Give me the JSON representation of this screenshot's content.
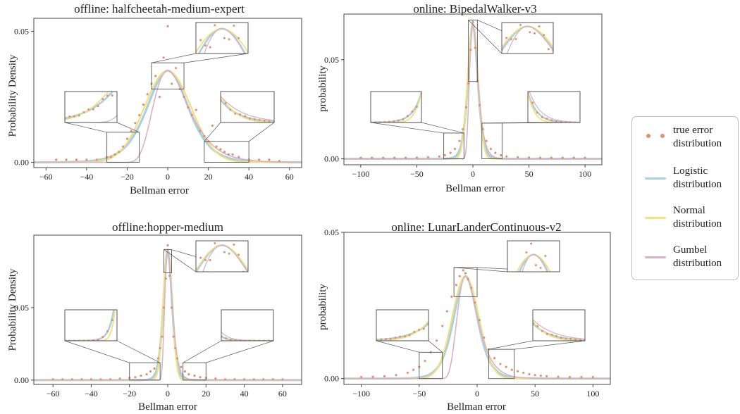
{
  "colors": {
    "true_error": "#e0926c",
    "logistic": "#aacfe2",
    "normal": "#f2df7d",
    "gumbel": "#d5b3c8",
    "frame": "#444444",
    "inset_frame": "#555555"
  },
  "legend": {
    "placement": "right",
    "items": [
      {
        "label": "true error\ndistribution",
        "color": "#e0926c",
        "marker": "dots"
      },
      {
        "label": "Logistic\ndistribution",
        "color": "#aacfe2",
        "marker": "line"
      },
      {
        "label": "Normal\ndistribution",
        "color": "#f2df7d",
        "marker": "line"
      },
      {
        "label": "Gumbel\ndistribution",
        "color": "#d5b3c8",
        "marker": "line"
      }
    ]
  },
  "chart_data": [
    {
      "type": "scatter",
      "title": "offline: halfcheetah-medium-expert",
      "xlabel": "Bellman error",
      "ylabel": "Probability Density",
      "xlim": [
        -66,
        66
      ],
      "ylim": [
        -0.002,
        0.055
      ],
      "xticks": [
        -60,
        -40,
        -20,
        0,
        20,
        40,
        60
      ],
      "yticks": [
        0.0,
        0.05
      ],
      "ytick_labels": [
        "0.00",
        "0.05"
      ],
      "grid": false,
      "center": 0,
      "peak": 0.035,
      "logistic_scale": 6.8,
      "normal_sigma": 11.4,
      "series": [
        {
          "x": [
            -55,
            -50,
            -45,
            -40,
            -35,
            -30,
            -28,
            -26,
            -24,
            -22,
            -20,
            -18,
            -16,
            -14,
            -12,
            -10,
            -8,
            -6,
            -4,
            -2,
            0,
            2,
            4,
            6,
            8,
            10,
            12,
            14,
            16,
            18,
            20,
            22,
            24,
            26,
            28,
            30,
            32,
            35,
            40,
            45,
            50,
            55
          ],
          "y": [
            0.001,
            0.001,
            0.001,
            0.001,
            0.001,
            0.002,
            0.002,
            0.003,
            0.004,
            0.006,
            0.009,
            0.012,
            0.015,
            0.018,
            0.022,
            0.026,
            0.03,
            0.033,
            0.025,
            0.04,
            0.052,
            0.03,
            0.036,
            0.028,
            0.025,
            0.021,
            0.018,
            0.02,
            0.012,
            0.01,
            0.008,
            0.014,
            0.006,
            0.005,
            0.004,
            0.003,
            0.003,
            0.002,
            0.001,
            0.001,
            0.001,
            0.0005
          ]
        }
      ]
    },
    {
      "type": "scatter",
      "title": "online: BipedalWalker-v3",
      "xlabel": "Bellman error",
      "ylabel": "probability",
      "xlim": [
        -115,
        115
      ],
      "ylim": [
        -0.003,
        0.073
      ],
      "xticks": [
        -100,
        -50,
        0,
        50,
        100
      ],
      "yticks": [
        0.0,
        0.05
      ],
      "ytick_labels": [
        "0.00",
        "0.05"
      ],
      "grid": false,
      "center": 0,
      "peak": 0.068,
      "logistic_scale": 2.9,
      "normal_sigma": 4.6,
      "series": [
        {
          "x": [
            -100,
            -90,
            -80,
            -70,
            -60,
            -50,
            -40,
            -30,
            -25,
            -20,
            -16,
            -12,
            -9,
            -6,
            -4,
            -2,
            0,
            2,
            4,
            6,
            9,
            12,
            16,
            20,
            25,
            30,
            40,
            50,
            60,
            70,
            80,
            90,
            100
          ],
          "y": [
            0.0005,
            0.0005,
            0.0005,
            0.0005,
            0.0005,
            0.0006,
            0.0008,
            0.0012,
            0.0018,
            0.003,
            0.005,
            0.009,
            0.015,
            0.026,
            0.038,
            0.055,
            0.069,
            0.056,
            0.039,
            0.027,
            0.015,
            0.009,
            0.005,
            0.003,
            0.0018,
            0.0012,
            0.0008,
            0.0006,
            0.0005,
            0.0005,
            0.0005,
            0.0005,
            0.0005
          ]
        }
      ]
    },
    {
      "type": "scatter",
      "title": "offline:hopper-medium",
      "xlabel": "Bellman error",
      "ylabel": "Probability Density",
      "xlim": [
        -70,
        70
      ],
      "ylim": [
        -0.003,
        0.1
      ],
      "xticks": [
        -60,
        -40,
        -20,
        0,
        20,
        40,
        60
      ],
      "yticks": [
        0.0,
        0.05
      ],
      "ytick_labels": [
        "0.00",
        "0.05"
      ],
      "grid": false,
      "center": 0,
      "peak": 0.09,
      "logistic_scale": 1.5,
      "normal_sigma": 2.3,
      "series": [
        {
          "x": [
            -60,
            -55,
            -50,
            -45,
            -40,
            -35,
            -30,
            -25,
            -20,
            -17,
            -14,
            -11,
            -9,
            -7,
            -5,
            -4,
            -3,
            -2,
            -1,
            0,
            1,
            2,
            3,
            4,
            5,
            7,
            9,
            11,
            14,
            17,
            20,
            25,
            30,
            35,
            40,
            45,
            50,
            55,
            60
          ],
          "y": [
            0.0005,
            0.0005,
            0.0005,
            0.0005,
            0.0005,
            0.0005,
            0.0005,
            0.001,
            0.0015,
            0.002,
            0.003,
            0.004,
            0.006,
            0.008,
            0.015,
            0.022,
            0.03,
            0.05,
            0.07,
            0.093,
            0.072,
            0.05,
            0.03,
            0.022,
            0.015,
            0.009,
            0.006,
            0.004,
            0.003,
            0.002,
            0.0015,
            0.001,
            0.0005,
            0.0005,
            0.0005,
            0.0005,
            0.0005,
            0.0005,
            0.0005
          ]
        }
      ]
    },
    {
      "type": "scatter",
      "title": "online: LunarLanderContinuous-v2",
      "xlabel": "Bellman error",
      "ylabel": "probability",
      "xlim": [
        -115,
        115
      ],
      "ylim": [
        -0.002,
        0.05
      ],
      "xticks": [
        -100,
        -50,
        0,
        50,
        100
      ],
      "yticks": [
        0.0,
        0.05
      ],
      "ytick_labels": [
        "0.00",
        "0.05"
      ],
      "grid": false,
      "center": -10,
      "peak": 0.035,
      "logistic_scale": 6.8,
      "normal_sigma": 11.4,
      "series": [
        {
          "x": [
            -100,
            -90,
            -80,
            -70,
            -60,
            -55,
            -50,
            -45,
            -40,
            -35,
            -30,
            -26,
            -22,
            -18,
            -15,
            -12,
            -10,
            -8,
            -5,
            -2,
            2,
            6,
            10,
            15,
            20,
            25,
            30,
            35,
            40,
            45,
            50,
            55,
            60,
            70,
            80,
            90,
            100
          ],
          "y": [
            0.0005,
            0.0006,
            0.0008,
            0.0012,
            0.002,
            0.003,
            0.004,
            0.006,
            0.009,
            0.013,
            0.018,
            0.023,
            0.028,
            0.032,
            0.035,
            0.037,
            0.036,
            0.034,
            0.031,
            0.026,
            0.02,
            0.014,
            0.01,
            0.007,
            0.005,
            0.004,
            0.003,
            0.0025,
            0.002,
            0.0015,
            0.0012,
            0.001,
            0.0008,
            0.0006,
            0.0005,
            0.0005,
            0.0005
          ]
        }
      ]
    }
  ]
}
